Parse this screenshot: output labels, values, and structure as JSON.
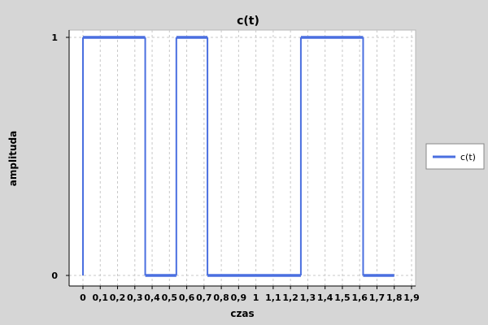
{
  "chart_data": {
    "type": "line",
    "title": "c(t)",
    "xlabel": "czas",
    "ylabel": "amplituda",
    "xlim": [
      -0.08,
      1.9
    ],
    "ylim": [
      -0.02,
      1.02
    ],
    "x_ticks": [
      0,
      0.1,
      0.2,
      0.3,
      0.4,
      0.5,
      0.6,
      0.7,
      0.8,
      0.9,
      1,
      1.1,
      1.2,
      1.3,
      1.4,
      1.5,
      1.6,
      1.7,
      1.8,
      1.9
    ],
    "x_tick_labels": [
      "0",
      "0,1",
      "0,2",
      "0,3",
      "0,4",
      "0,5",
      "0,6",
      "0,7",
      "0,8",
      "0,9",
      "1",
      "1,1",
      "1,2",
      "1,3",
      "1,4",
      "1,5",
      "1,6",
      "1,7",
      "1,8",
      "1,9"
    ],
    "y_ticks": [
      0,
      1
    ],
    "y_tick_labels": [
      "0",
      "1"
    ],
    "grid": true,
    "legend_position": "right",
    "series": [
      {
        "name": "c(t)",
        "color": "#4a6fe0",
        "x": [
          0,
          0,
          0.36,
          0.36,
          0.54,
          0.54,
          0.72,
          0.72,
          1.26,
          1.26,
          1.62,
          1.62,
          1.8
        ],
        "y": [
          0,
          1,
          1,
          0,
          0,
          1,
          1,
          0,
          0,
          1,
          1,
          0,
          0
        ]
      }
    ]
  }
}
